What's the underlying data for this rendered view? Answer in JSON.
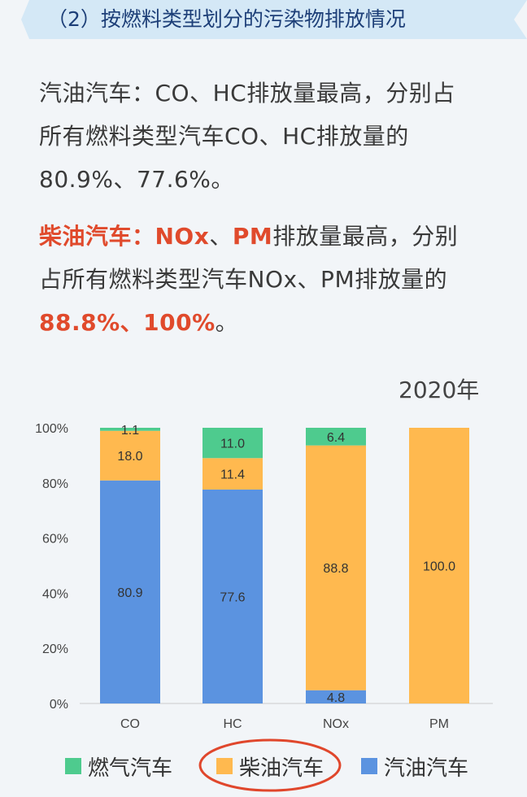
{
  "banner": {
    "title": "（2）按燃料类型划分的污染物排放情况"
  },
  "gasoline_text": {
    "p1": "汽油汽车：CO、HC排放量最高，分别占",
    "p2": "所有燃料类型汽车CO、HC排放量的",
    "p3": "80.9%、77.6%。"
  },
  "diesel_text": {
    "label": "柴油汽车：NOx",
    "sep1": "、",
    "pm": "PM",
    "rest1": "排放量最高，分别",
    "line2": "占所有燃料类型汽车NOx、PM排放量的",
    "values": "88.8%、100%",
    "end": "。"
  },
  "chart_data": {
    "type": "bar",
    "stacked": true,
    "title": "2020年",
    "categories": [
      "CO",
      "HC",
      "NOx",
      "PM"
    ],
    "series": [
      {
        "name": "汽油汽车",
        "color": "#5b93e0",
        "values": [
          80.9,
          77.6,
          4.8,
          0
        ],
        "labels": [
          "80.9",
          "77.6",
          "4.8",
          ""
        ]
      },
      {
        "name": "柴油汽车",
        "color": "#ffb94f",
        "values": [
          18.0,
          11.4,
          88.8,
          100.0
        ],
        "labels": [
          "18.0",
          "11.4",
          "88.8",
          "100.0"
        ]
      },
      {
        "name": "燃气汽车",
        "color": "#4ecb8e",
        "values": [
          1.1,
          11.0,
          6.4,
          0
        ],
        "labels": [
          "1.1",
          "11.0",
          "6.4",
          ""
        ]
      }
    ],
    "yticks": [
      "0%",
      "20%",
      "40%",
      "60%",
      "80%",
      "100%"
    ],
    "ylim": [
      0,
      100
    ],
    "legend": [
      "燃气汽车",
      "柴油汽车",
      "汽油汽车"
    ],
    "legend_highlight": "柴油汽车"
  },
  "colors": {
    "banner_bg": "#d4e8f6",
    "highlight": "#e04a2c",
    "legend_circle": "#e0472c"
  }
}
